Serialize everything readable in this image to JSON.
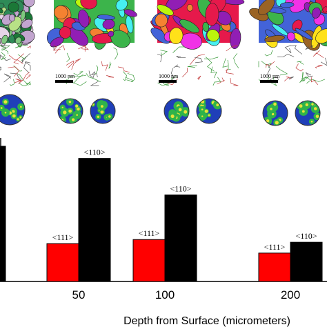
{
  "panels": [
    {
      "name": "ebsd-surface",
      "scale_bar": "",
      "palette": [
        "#2e8b57",
        "#7fc97f",
        "#b8e186",
        "#1b7837",
        "#c2a5cf",
        "#e7d4e8"
      ]
    },
    {
      "name": "ebsd-50",
      "scale_bar": "1000 nm",
      "palette": [
        "#3cb44b",
        "#46f0f0",
        "#4363d8",
        "#bcf60c",
        "#911eb4",
        "#f58231",
        "#e6194b",
        "#ffe119"
      ]
    },
    {
      "name": "ebsd-100",
      "scale_bar": "1000 nm",
      "palette": [
        "#e6194b",
        "#3cb44b",
        "#ffe119",
        "#4363d8",
        "#f58231",
        "#911eb4",
        "#46f0f0",
        "#f032e6",
        "#bcf60c"
      ]
    },
    {
      "name": "ebsd-200",
      "scale_bar": "1000 nm",
      "palette": [
        "#4363d8",
        "#911eb4",
        "#f032e6",
        "#e6194b",
        "#3cb44b",
        "#ffe119",
        "#46f0f0",
        "#9a6324"
      ]
    }
  ],
  "chart_data": {
    "type": "bar",
    "categories": [
      "",
      "50",
      "100",
      "200"
    ],
    "series": [
      {
        "name": "<111>",
        "color": "#ff0000",
        "values": [
          null,
          0.28,
          0.31,
          0.21
        ]
      },
      {
        "name": "<110>",
        "color": "#000000",
        "values": [
          1.0,
          0.91,
          0.64,
          0.29
        ]
      }
    ],
    "bar_labels": {
      "<111>": [
        null,
        "<111>",
        "<111>",
        "<111>"
      ],
      "<110>": [
        null,
        "<110>",
        "<110>",
        "<110>"
      ]
    },
    "xlabel": "Depth from Surface (micrometers)",
    "ylabel": "",
    "ylim": [
      0,
      1.0
    ],
    "grid": false
  }
}
